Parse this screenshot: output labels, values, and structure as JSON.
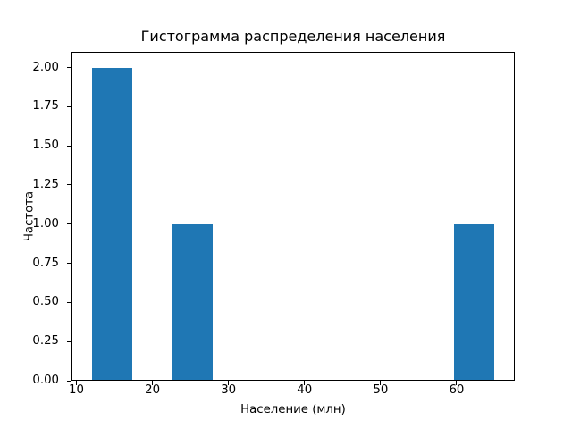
{
  "chart_data": {
    "type": "bar",
    "subtype": "histogram",
    "title": "Гистограмма распределения населения",
    "xlabel": "Население (млн)",
    "ylabel": "Частота",
    "bin_edges": [
      12,
      17.3,
      22.6,
      27.9,
      33.2,
      38.5,
      43.8,
      49.1,
      54.4,
      59.7,
      65
    ],
    "counts": [
      2,
      0,
      1,
      0,
      0,
      0,
      0,
      0,
      0,
      1
    ],
    "xlim": [
      9.35,
      67.65
    ],
    "ylim": [
      0,
      2.1
    ],
    "xticks": [
      10,
      20,
      30,
      40,
      50,
      60
    ],
    "xtick_labels": [
      "10",
      "20",
      "30",
      "40",
      "50",
      "60"
    ],
    "yticks": [
      0,
      0.25,
      0.5,
      0.75,
      1.0,
      1.25,
      1.5,
      1.75,
      2.0
    ],
    "ytick_labels": [
      "0.00",
      "0.25",
      "0.50",
      "0.75",
      "1.00",
      "1.25",
      "1.50",
      "1.75",
      "2.00"
    ],
    "bar_color": "#1f77b4",
    "spine_color": "#000000",
    "grid": false,
    "legend": null
  }
}
